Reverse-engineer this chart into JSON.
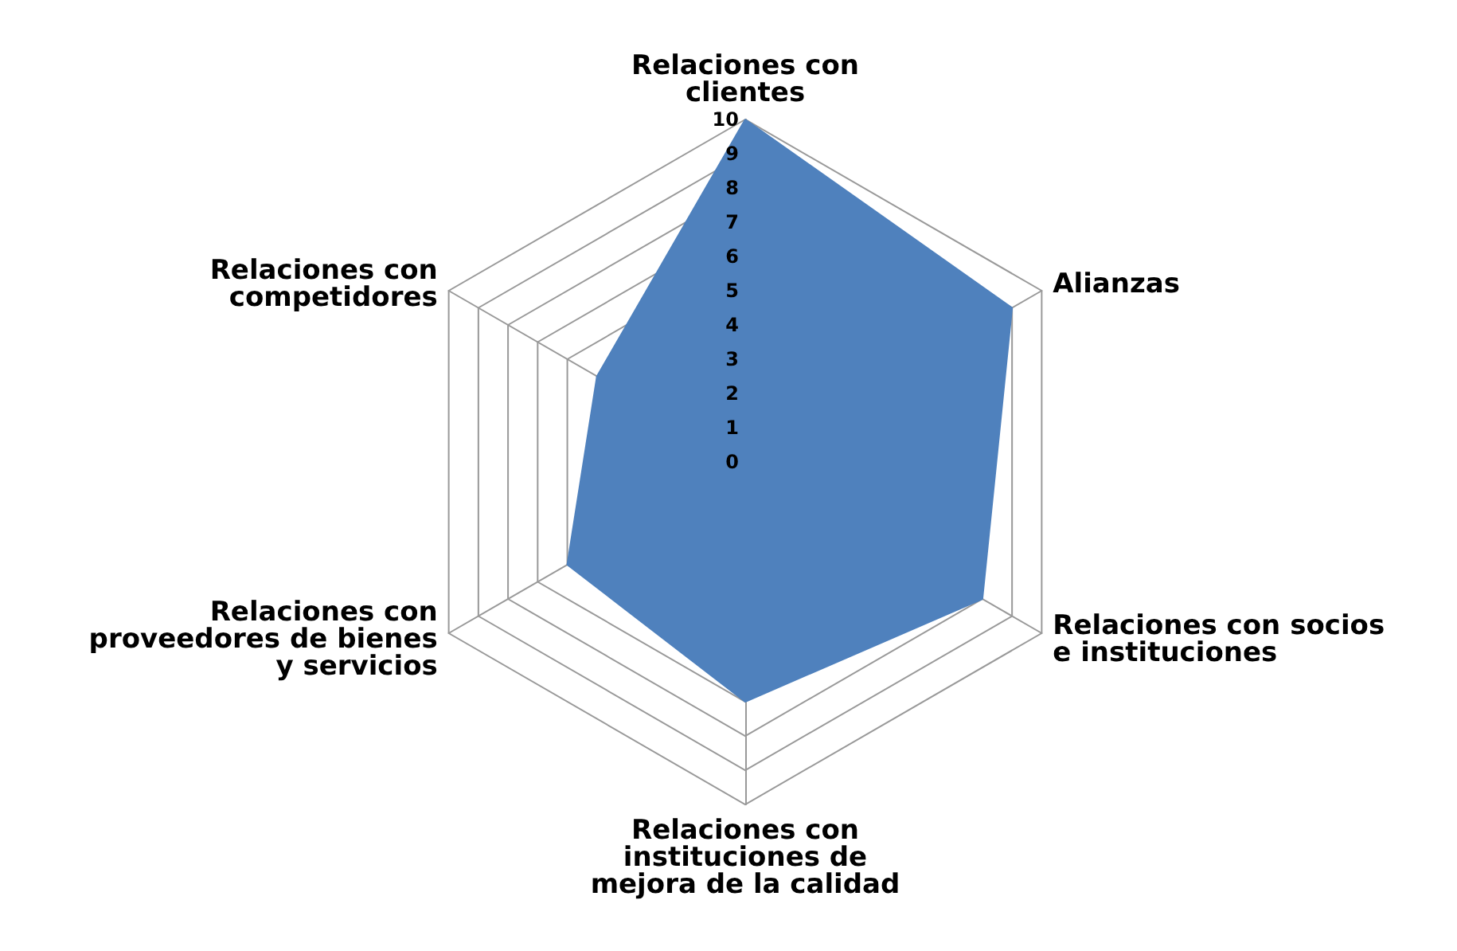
{
  "chart_data": {
    "type": "radar",
    "categories": [
      "Relaciones con clientes",
      "Alianzas",
      "Relaciones con socios e instituciones",
      "Relaciones con instituciones de mejora de la calidad",
      "Relaciones con proveedores de bienes y servicios",
      "Relaciones con competidores"
    ],
    "series": [
      {
        "color": "#4f81bd",
        "values": [
          10,
          9,
          8,
          7,
          6,
          5
        ]
      }
    ],
    "ylim": [
      0,
      10
    ],
    "yticks": [
      0,
      1,
      2,
      3,
      4,
      5,
      6,
      7,
      8,
      9,
      10
    ]
  }
}
